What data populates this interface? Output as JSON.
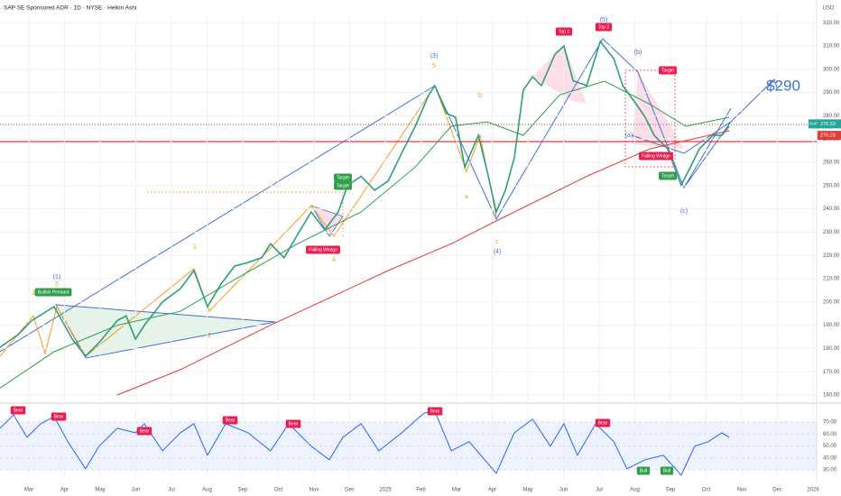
{
  "header": {
    "title": "SAP SE Sponsored ADR · 1D · NYSE · Heikin Ashi",
    "currency": "USD"
  },
  "chart_data": [
    {
      "type": "line",
      "xlim": [
        -0.81,
        22.1
      ],
      "xticks": [
        {
          "value": 0,
          "label": "Mar"
        },
        {
          "value": 1,
          "label": "Apr"
        },
        {
          "value": 2,
          "label": "May"
        },
        {
          "value": 3,
          "label": "Jun"
        },
        {
          "value": 4,
          "label": "Jul"
        },
        {
          "value": 5,
          "label": "Aug"
        },
        {
          "value": 6,
          "label": "Sep"
        },
        {
          "value": 7,
          "label": "Oct"
        },
        {
          "value": 8,
          "label": "Nov"
        },
        {
          "value": 9,
          "label": "Dec"
        },
        {
          "value": 10,
          "label": "2025"
        },
        {
          "value": 11,
          "label": "Feb"
        },
        {
          "value": 12,
          "label": "Mar"
        },
        {
          "value": 13,
          "label": "Apr"
        },
        {
          "value": 14,
          "label": "May"
        },
        {
          "value": 15,
          "label": "Jun"
        },
        {
          "value": 16,
          "label": "Jul"
        },
        {
          "value": 17,
          "label": "Aug"
        },
        {
          "value": 18,
          "label": "Sep"
        },
        {
          "value": 19,
          "label": "Oct"
        },
        {
          "value": 20,
          "label": "Nov"
        },
        {
          "value": 21,
          "label": "Dec"
        },
        {
          "value": 22,
          "label": "2026"
        }
      ],
      "ylim": [
        157.3,
        322.8
      ],
      "yticks": [
        {
          "value": 160,
          "label": "160.00"
        },
        {
          "value": 170,
          "label": "170.00"
        },
        {
          "value": 180,
          "label": "180.00"
        },
        {
          "value": 190,
          "label": "190.00"
        },
        {
          "value": 200,
          "label": "200.00"
        },
        {
          "value": 210,
          "label": "210.00"
        },
        {
          "value": 220,
          "label": "220.00"
        },
        {
          "value": 230,
          "label": "230.00"
        },
        {
          "value": 240,
          "label": "240.00"
        },
        {
          "value": 250,
          "label": "250.00"
        },
        {
          "value": 260,
          "label": "260.00"
        },
        {
          "value": 270,
          "label": "270.00"
        },
        {
          "value": 280,
          "label": "280.00"
        },
        {
          "value": 290,
          "label": "290.00"
        },
        {
          "value": 300,
          "label": "300.00"
        },
        {
          "value": 310,
          "label": "310.00"
        },
        {
          "value": 320,
          "label": "320.00"
        }
      ],
      "grid": true,
      "series": [
        {
          "color": "#2e9e7e",
          "x": [
            -0.81,
            -0.3,
            0.08,
            0.71,
            1.22,
            1.59,
            1.97,
            2.48,
            2.73,
            2.99,
            3.24,
            3.75,
            4.25,
            4.63,
            5.01,
            5.39,
            5.77,
            6.15,
            6.53,
            6.78,
            7.16,
            7.54,
            7.92,
            8.3,
            8.68,
            8.94,
            9.32,
            9.7,
            10.08,
            10.46,
            10.84,
            11.22,
            11.39,
            11.72,
            11.97,
            12.23,
            12.61,
            12.86,
            13.11,
            13.37,
            13.62,
            13.87,
            14.13,
            14.38,
            14.76,
            15.01,
            15.27,
            15.65,
            16.03,
            16.41,
            16.66,
            17.04,
            17.29,
            17.54,
            17.92,
            18.3,
            18.56,
            18.81,
            19.19,
            19.44,
            19.65
          ],
          "values": [
            180.5,
            186,
            192,
            198,
            184,
            176.7,
            182.5,
            192,
            194,
            184,
            190,
            200,
            205.7,
            213.5,
            198,
            207.7,
            215.4,
            217,
            219,
            225,
            219,
            229,
            238.7,
            231,
            238.7,
            250,
            254,
            248,
            252,
            264,
            275.5,
            289,
            293,
            281,
            279.4,
            258,
            271.6,
            256,
            238.7,
            248,
            262,
            291,
            296.8,
            293,
            306.5,
            310,
            295,
            293,
            312,
            304.6,
            293,
            285,
            279.4,
            271.6,
            265.8,
            250.3,
            258,
            265.8,
            271.6,
            271.6,
            275.5
          ]
        },
        {
          "color": "#2e9e4a",
          "x": [
            -0.81,
            0.71,
            2.48,
            4.25,
            5.77,
            7.54,
            9.32,
            10.84,
            11.85,
            12.86,
            13.87,
            14.89,
            16.15,
            17.42,
            18.43,
            19.65
          ],
          "values": [
            163,
            178.6,
            190,
            196,
            209.6,
            225,
            238.7,
            258,
            275.5,
            277.4,
            271.6,
            289,
            294.9,
            285,
            275.5,
            279.4
          ]
        },
        {
          "color": "#e53935",
          "x": [
            2.48,
            4.25,
            6.78,
            10.08,
            11.85,
            13.11,
            15.65,
            17.42,
            19.65
          ],
          "values": [
            160,
            170.9,
            190,
            213.5,
            225,
            234.8,
            254,
            265.8,
            273.6
          ]
        }
      ],
      "symbol": "SAP",
      "price_tags": [
        {
          "value": 276.53,
          "label": "276.53",
          "color": "#26a69a"
        },
        {
          "value": 276.23,
          "label": "276.23",
          "color": "#e53935"
        }
      ],
      "annotations": [
        "Bullish Pennant",
        "(1)",
        "3",
        "5",
        "(3)",
        "5",
        "(4)",
        "c",
        "b",
        "a",
        "(5)",
        "Top 1",
        "Top 2",
        "(b)",
        "Target",
        "(a)",
        "Falling Wedge",
        "Target",
        "(c)",
        "Falling Wedge",
        "4",
        "Target",
        "Target",
        "1",
        "2",
        "$290"
      ]
    },
    {
      "type": "line",
      "xlim": [
        -0.81,
        22.1
      ],
      "ylim": [
        23.2,
        83.5
      ],
      "yticks": [
        {
          "value": 30,
          "label": "30.00"
        },
        {
          "value": 40,
          "label": "40.00"
        },
        {
          "value": 50,
          "label": "50.00"
        },
        {
          "value": 60,
          "label": "60.00"
        },
        {
          "value": 70,
          "label": "70.00"
        }
      ],
      "band": [
        30,
        70
      ],
      "series": [
        {
          "color": "#2962ff",
          "x": [
            -0.81,
            -0.43,
            -0.05,
            0.33,
            0.71,
            1.09,
            1.59,
            1.97,
            2.48,
            2.99,
            3.24,
            3.75,
            4.25,
            4.63,
            5.01,
            5.52,
            6.15,
            6.78,
            7.29,
            7.92,
            8.43,
            8.81,
            9.32,
            9.82,
            10.46,
            11.09,
            11.39,
            11.85,
            12.35,
            13.11,
            13.62,
            14.13,
            14.63,
            15.01,
            15.39,
            15.9,
            16.41,
            16.78,
            17.29,
            17.8,
            18.3,
            18.68,
            19.06,
            19.44,
            19.65
          ],
          "values": [
            64.7,
            76,
            57.2,
            68.5,
            74.5,
            53.5,
            30.9,
            49.7,
            64.7,
            61,
            68.5,
            45.9,
            61,
            68.5,
            42.2,
            68.5,
            61,
            45.9,
            68.5,
            49.7,
            38.4,
            57.2,
            68.5,
            45.9,
            61,
            77.5,
            79,
            45.9,
            53.5,
            27.1,
            61,
            72.3,
            49.7,
            68.5,
            42.2,
            68.5,
            53.5,
            30.9,
            38.4,
            42.2,
            25.6,
            49.7,
            53.5,
            61,
            57.2
          ]
        }
      ],
      "annotations": [
        "Bear",
        "Bear",
        "Bear",
        "Bear",
        "Bear",
        "Bear",
        "Bear",
        "Bull",
        "Bull"
      ]
    }
  ]
}
